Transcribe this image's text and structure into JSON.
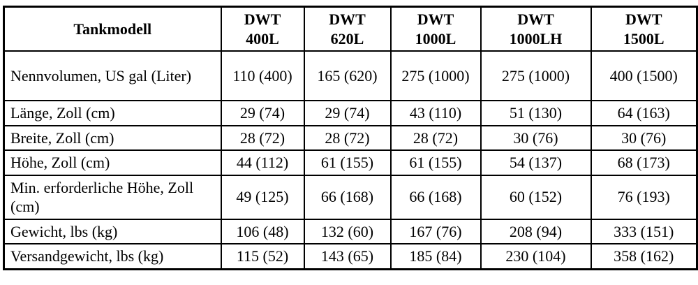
{
  "table": {
    "corner_header": "Tankmodell",
    "headers": [
      {
        "line1": "DWT",
        "line2": "400L"
      },
      {
        "line1": "DWT",
        "line2": "620L"
      },
      {
        "line1": "DWT",
        "line2": "1000L"
      },
      {
        "line1": "DWT",
        "line2": "1000LH"
      },
      {
        "line1": "DWT",
        "line2": "1500L"
      }
    ],
    "rows": [
      {
        "label": "Nennvolumen, US gal (Liter)",
        "values": [
          "110 (400)",
          "165 (620)",
          "275 (1000)",
          "275 (1000)",
          "400 (1500)"
        ]
      },
      {
        "label": "Länge, Zoll (cm)",
        "values": [
          "29 (74)",
          "29 (74)",
          "43 (110)",
          "51 (130)",
          "64 (163)"
        ]
      },
      {
        "label": "Breite, Zoll (cm)",
        "values": [
          "28 (72)",
          "28 (72)",
          "28 (72)",
          "30 (76)",
          "30 (76)"
        ]
      },
      {
        "label": "Höhe, Zoll (cm)",
        "values": [
          "44 (112)",
          "61 (155)",
          "61 (155)",
          "54 (137)",
          "68 (173)"
        ]
      },
      {
        "label": "Min. erforderliche Höhe, Zoll (cm)",
        "values": [
          "49 (125)",
          "66 (168)",
          "66 (168)",
          "60 (152)",
          "76 (193)"
        ]
      },
      {
        "label": "Gewicht, lbs (kg)",
        "values": [
          "106 (48)",
          "132 (60)",
          "167 (76)",
          "208 (94)",
          "333 (151)"
        ]
      },
      {
        "label": "Versandgewicht, lbs (kg)",
        "values": [
          "115 (52)",
          "143 (65)",
          "185 (84)",
          "230 (104)",
          "358 (162)"
        ]
      }
    ],
    "border_color": "#000000",
    "background_color": "#ffffff",
    "text_color": "#000000"
  }
}
